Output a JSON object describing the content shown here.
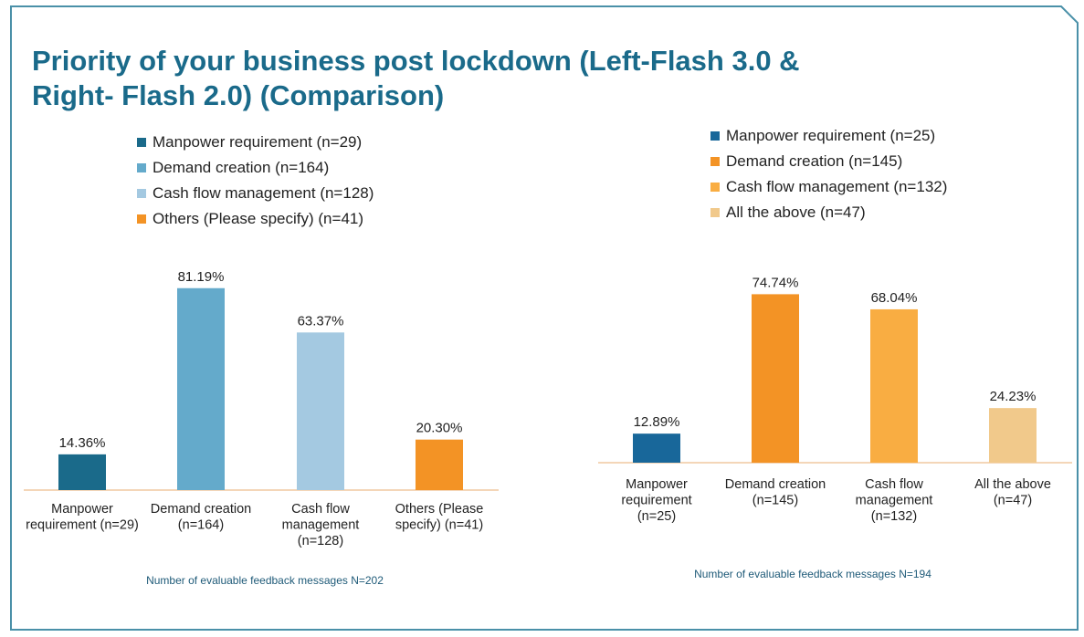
{
  "title_line1": "Priority of your business post lockdown (Left-Flash 3.0 &",
  "title_line2": "Right- Flash 2.0) (Comparison)",
  "colors": {
    "border": "#4a90a8",
    "title": "#1a6a8a",
    "baseline": "#f0c8a0",
    "note": "#1e5a78"
  },
  "chart_data": [
    {
      "type": "bar",
      "title": "",
      "xlabel": "",
      "ylabel": "",
      "ylim": [
        0,
        100
      ],
      "grid": false,
      "legend_position": "top",
      "categories": [
        [
          "Manpower",
          "requirement (n=29)"
        ],
        [
          "Demand creation",
          "(n=164)"
        ],
        [
          "Cash flow",
          "management",
          "(n=128)"
        ],
        [
          "Others (Please",
          "specify) (n=41)"
        ]
      ],
      "values": [
        14.36,
        81.19,
        63.37,
        20.3
      ],
      "value_labels": [
        "14.36%",
        "81.19%",
        "63.37%",
        "20.30%"
      ],
      "colors": [
        "#1a6a8a",
        "#64aacb",
        "#a4c9e1",
        "#f39325"
      ],
      "legend": [
        "Manpower requirement (n=29)",
        "Demand creation (n=164)",
        "Cash flow management (n=128)",
        "Others (Please specify) (n=41)"
      ],
      "note": "Number of evaluable feedback messages N=202"
    },
    {
      "type": "bar",
      "title": "",
      "xlabel": "",
      "ylabel": "",
      "ylim": [
        0,
        100
      ],
      "grid": false,
      "legend_position": "top",
      "categories": [
        [
          "Manpower",
          "requirement",
          "(n=25)"
        ],
        [
          "Demand creation",
          "(n=145)"
        ],
        [
          "Cash flow",
          "management",
          "(n=132)"
        ],
        [
          "All the above",
          "(n=47)"
        ]
      ],
      "values": [
        12.89,
        74.74,
        68.04,
        24.23
      ],
      "value_labels": [
        "12.89%",
        "74.74%",
        "68.04%",
        "24.23%"
      ],
      "colors": [
        "#18679a",
        "#f39325",
        "#f9ad42",
        "#f1c98b"
      ],
      "legend": [
        "Manpower requirement (n=25)",
        "Demand creation (n=145)",
        "Cash flow management (n=132)",
        "All the above (n=47)"
      ],
      "note": "Number of evaluable feedback messages N=194"
    }
  ]
}
